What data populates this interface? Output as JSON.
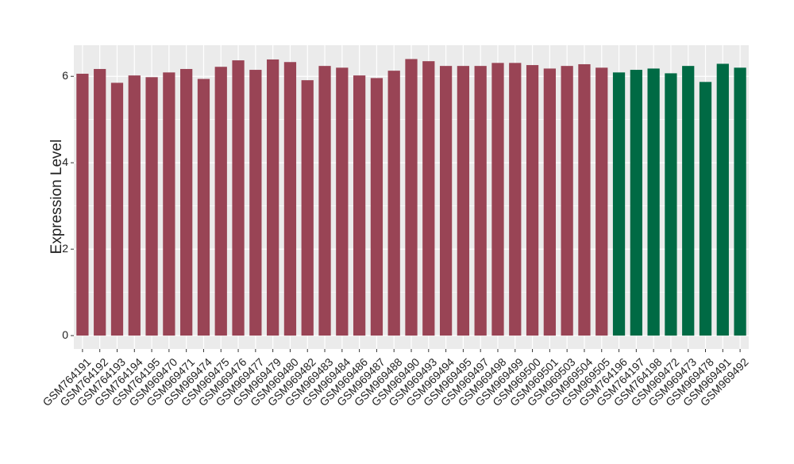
{
  "chart_data": {
    "type": "bar",
    "y_label": "Expression Level",
    "categories": [
      "GSM764191",
      "GSM764192",
      "GSM764193",
      "GSM764194",
      "GSM764195",
      "GSM969470",
      "GSM969471",
      "GSM969474",
      "GSM969475",
      "GSM969476",
      "GSM969477",
      "GSM969479",
      "GSM969480",
      "GSM969482",
      "GSM969483",
      "GSM969484",
      "GSM969486",
      "GSM969487",
      "GSM969488",
      "GSM969490",
      "GSM969493",
      "GSM969494",
      "GSM969495",
      "GSM969497",
      "GSM969498",
      "GSM969499",
      "GSM969500",
      "GSM969501",
      "GSM969503",
      "GSM969504",
      "GSM969505",
      "GSM764196",
      "GSM764197",
      "GSM764198",
      "GSM969472",
      "GSM969473",
      "GSM969478",
      "GSM969491",
      "GSM969492"
    ],
    "values": [
      6.06,
      6.17,
      5.85,
      6.02,
      5.98,
      6.09,
      6.17,
      5.94,
      6.22,
      6.37,
      6.15,
      6.39,
      6.33,
      5.91,
      6.24,
      6.2,
      6.02,
      5.96,
      6.13,
      6.4,
      6.35,
      6.24,
      6.24,
      6.24,
      6.31,
      6.31,
      6.26,
      6.18,
      6.24,
      6.28,
      6.2,
      6.09,
      6.15,
      6.18,
      6.07,
      6.24,
      5.87,
      6.29,
      6.2
    ],
    "colors": [
      "#994455",
      "#994455",
      "#994455",
      "#994455",
      "#994455",
      "#994455",
      "#994455",
      "#994455",
      "#994455",
      "#994455",
      "#994455",
      "#994455",
      "#994455",
      "#994455",
      "#994455",
      "#994455",
      "#994455",
      "#994455",
      "#994455",
      "#994455",
      "#994455",
      "#994455",
      "#994455",
      "#994455",
      "#994455",
      "#994455",
      "#994455",
      "#994455",
      "#994455",
      "#994455",
      "#994455",
      "#006a44",
      "#006a44",
      "#006a44",
      "#006a44",
      "#006a44",
      "#006a44",
      "#006a44",
      "#006a44"
    ],
    "ylim": [
      -0.31,
      6.72
    ],
    "yticks": [
      0,
      2,
      4,
      6
    ],
    "grid": true
  }
}
